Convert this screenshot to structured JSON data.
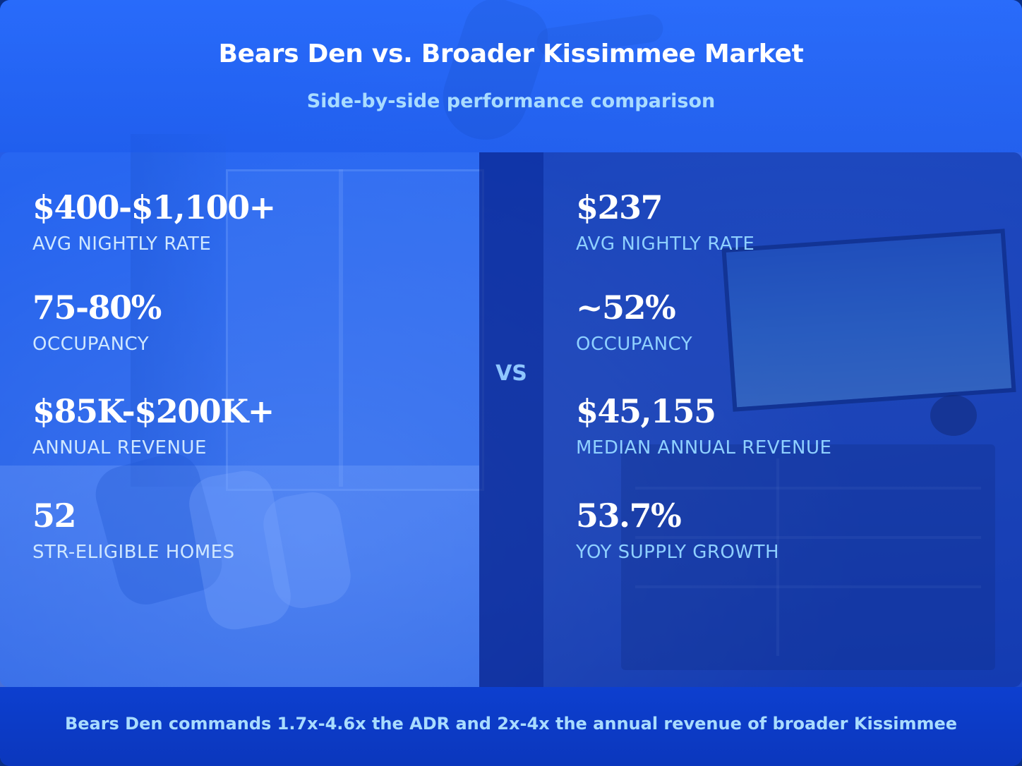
{
  "header": {
    "title": "Bears Den vs. Broader Kissimmee Market",
    "subtitle": "Side-by-side performance comparison"
  },
  "divider": {
    "label": "VS"
  },
  "bears_den": {
    "stats": [
      {
        "value": "$400-$1,100+",
        "label": "AVG NIGHTLY RATE"
      },
      {
        "value": "75-80%",
        "label": "OCCUPANCY"
      },
      {
        "value": "$85K-$200K+",
        "label": "ANNUAL REVENUE"
      },
      {
        "value": "52",
        "label": "STR-ELIGIBLE HOMES"
      }
    ]
  },
  "kissimmee_market": {
    "stats": [
      {
        "value": "$237",
        "label": "AVG NIGHTLY RATE"
      },
      {
        "value": "~52%",
        "label": "OCCUPANCY"
      },
      {
        "value": "$45,155",
        "label": "MEDIAN ANNUAL REVENUE"
      },
      {
        "value": "53.7%",
        "label": "YOY SUPPLY GROWTH"
      }
    ]
  },
  "footer": {
    "text": "Bears Den commands 1.7x-4.6x the ADR and 2x-4x the annual revenue of broader Kissimmee"
  },
  "colors": {
    "accent_light_blue": "#a9dcff",
    "panel_blue": "#2873ff",
    "divider_navy": "#0828a0",
    "footer_blue": "#0d3fcf"
  }
}
